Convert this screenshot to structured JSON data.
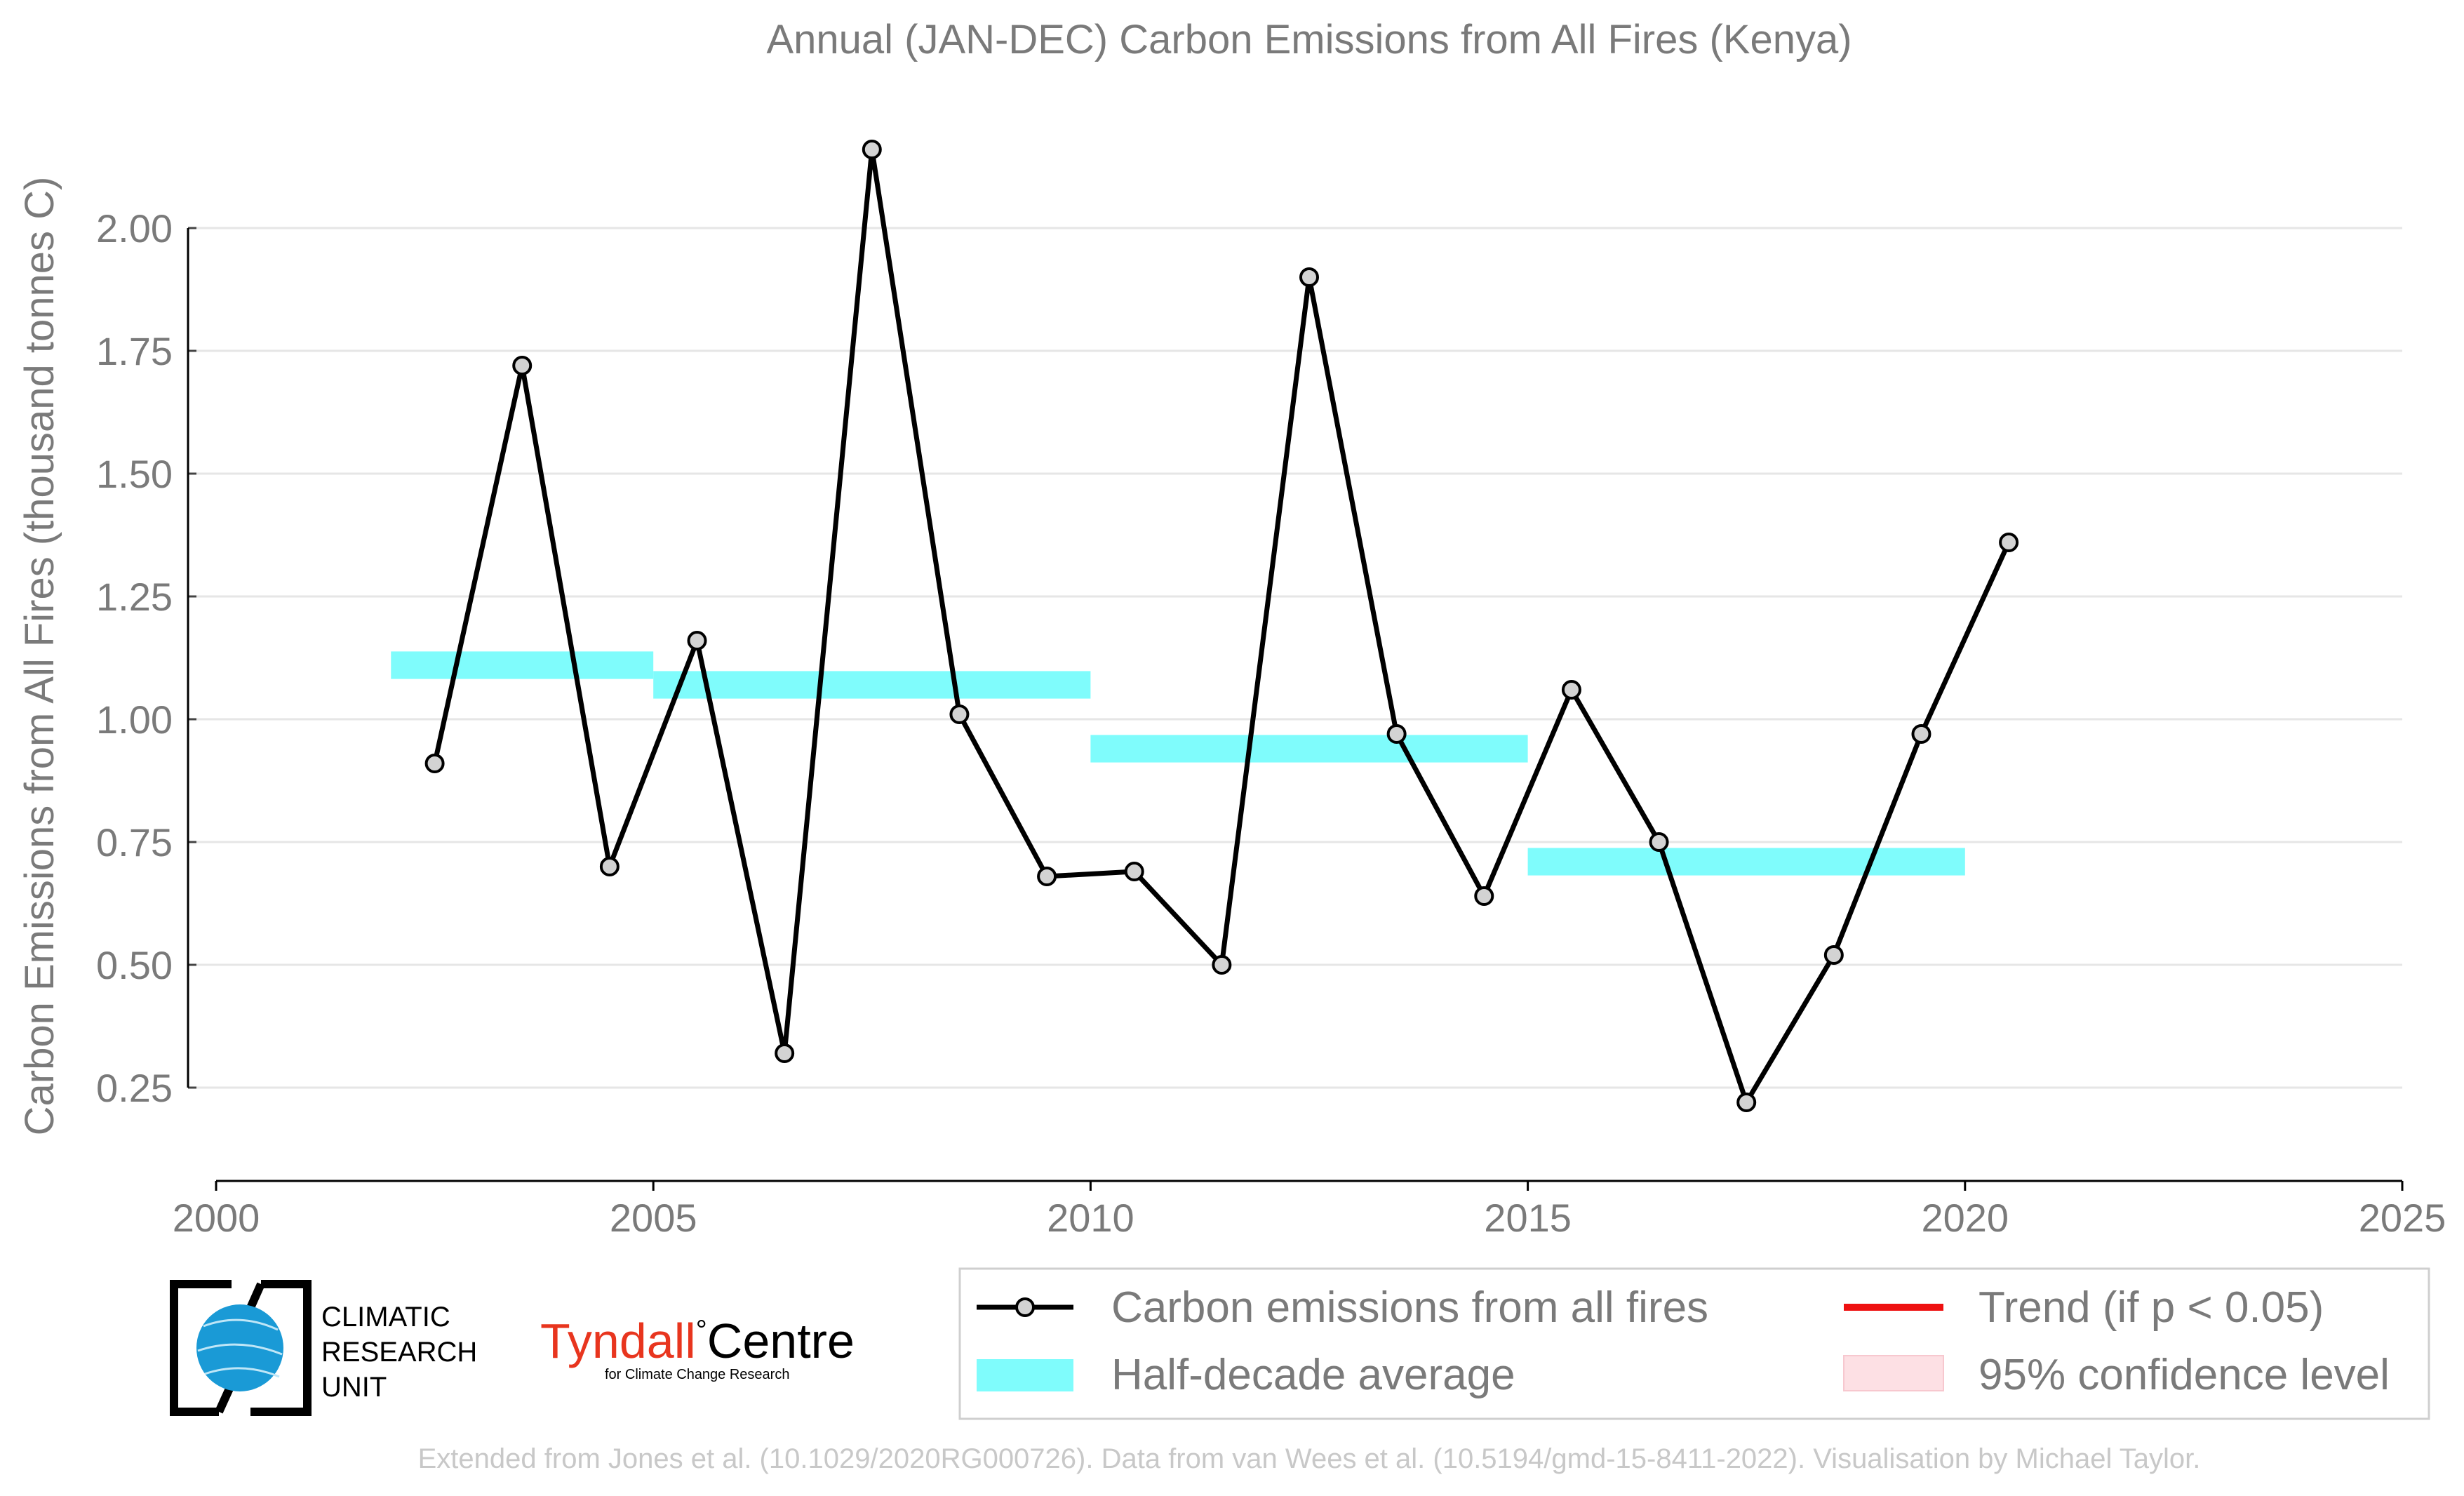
{
  "chart_data": {
    "type": "line",
    "title": "Annual (JAN-DEC) Carbon Emissions from All Fires (Kenya)",
    "xlabel": "",
    "ylabel": "Carbon Emissions from All Fires (thousand tonnes C)",
    "xlim": [
      2000,
      2025
    ],
    "ylim": [
      0.06,
      2.25
    ],
    "x_ticks": [
      "2000",
      "2005",
      "2010",
      "2015",
      "2020",
      "2025"
    ],
    "y_ticks": [
      "0.25",
      "0.50",
      "0.75",
      "1.00",
      "1.25",
      "1.50",
      "1.75",
      "2.00"
    ],
    "grid": true,
    "series": [
      {
        "name": "Carbon emissions from all fires",
        "color": "#000000",
        "marker_fill": "#d3d3d3",
        "x": [
          2002.5,
          2003.5,
          2004.5,
          2005.5,
          2006.5,
          2007.5,
          2008.5,
          2009.5,
          2010.5,
          2011.5,
          2012.5,
          2013.5,
          2014.5,
          2015.5,
          2016.5,
          2017.5,
          2018.5,
          2019.5,
          2020.5
        ],
        "y": [
          0.91,
          1.72,
          0.7,
          1.16,
          0.32,
          2.16,
          1.01,
          0.68,
          0.69,
          0.5,
          1.9,
          0.97,
          0.64,
          1.06,
          0.75,
          0.22,
          0.52,
          0.97,
          1.36
        ]
      }
    ],
    "half_decade_average": {
      "name": "Half-decade average",
      "color": "#7ffcfc",
      "segments": [
        {
          "x0": 2002,
          "x1": 2005,
          "y": 1.11
        },
        {
          "x0": 2005,
          "x1": 2010,
          "y": 1.07
        },
        {
          "x0": 2010,
          "x1": 2015,
          "y": 0.94
        },
        {
          "x0": 2015,
          "x1": 2020,
          "y": 0.71
        }
      ]
    },
    "legend": {
      "placement": "bottom-right",
      "items": [
        {
          "label": "Carbon emissions from all fires",
          "kind": "line-marker",
          "color": "#000000"
        },
        {
          "label": "Trend (if p < 0.05)",
          "kind": "line",
          "color": "#ee1111"
        },
        {
          "label": "Half-decade average",
          "kind": "band",
          "color": "#7ffcfc"
        },
        {
          "label": "95% confidence level",
          "kind": "band",
          "color": "#fde0e4"
        }
      ]
    }
  },
  "logos": {
    "cru_lines": [
      "CLIMATIC",
      "RESEARCH",
      "UNIT"
    ],
    "tyndall_main": "Tyndall",
    "tyndall_degree": "°",
    "tyndall_centre": "Centre",
    "tyndall_sub": "for Climate Change Research"
  },
  "footer": "Extended from Jones et al. (10.1029/2020RG000726). Data from van Wees et al. (10.5194/gmd-15-8411-2022). Visualisation by Michael Taylor."
}
